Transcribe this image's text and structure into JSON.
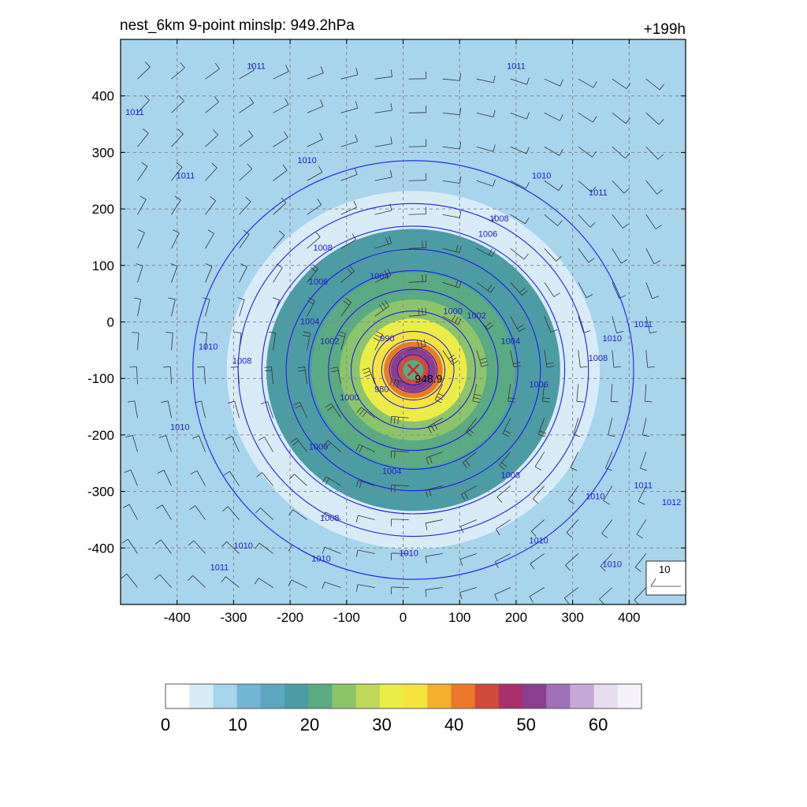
{
  "header": {
    "title_left": "nest_6km  9-point minslp: 949.2hPa",
    "title_right": "+199h"
  },
  "colors": {
    "contour": "#2020e0",
    "contour_label": "#2020c8",
    "center_marker": "#e02020",
    "grid": "#888888",
    "colormap": [
      "#ffffff",
      "#d8ecf8",
      "#a8d4ec",
      "#74b4d4",
      "#5ea6bf",
      "#4c9ca4",
      "#5aaa84",
      "#8cc46c",
      "#c0d85c",
      "#ecec48",
      "#f6e43c",
      "#f5b02e",
      "#ea7a2a",
      "#cf4a3a",
      "#a8306a",
      "#8a3e90",
      "#a070b8",
      "#c8a8d8",
      "#e8dcf0",
      "#f6f2fa"
    ]
  },
  "chart_data": {
    "type": "contour",
    "xlim": [
      -500,
      500
    ],
    "ylim": [
      -500,
      500
    ],
    "xticks": [
      -400,
      -300,
      -200,
      -100,
      0,
      100,
      200,
      300,
      400
    ],
    "yticks": [
      400,
      300,
      200,
      100,
      0,
      -100,
      -200,
      -300,
      -400
    ],
    "grid": true,
    "center": {
      "x": 18,
      "y": -85,
      "label": "948.9"
    },
    "filled_field": {
      "colorbar_min": 0,
      "colorbar_max": 66,
      "colorbar_ticks": [
        0,
        10,
        20,
        30,
        40,
        50,
        60
      ],
      "rings": [
        {
          "r": 480,
          "value": 9
        },
        {
          "r": 330,
          "value": 5
        },
        {
          "r": 260,
          "value": 17
        },
        {
          "r": 180,
          "value": 21
        },
        {
          "r": 130,
          "value": 26
        },
        {
          "r": 95,
          "value": 31
        },
        {
          "r": 70,
          "value": 36
        },
        {
          "r": 52,
          "value": 42
        },
        {
          "r": 40,
          "value": 50
        },
        {
          "r": 28,
          "value": 44
        },
        {
          "r": 18,
          "value": 20
        }
      ]
    },
    "contours": [
      {
        "r": 28,
        "label": ""
      },
      {
        "r": 42,
        "label": ""
      },
      {
        "r": 56,
        "label": "980"
      },
      {
        "r": 72,
        "label": "990"
      },
      {
        "r": 110,
        "label": "1000"
      },
      {
        "r": 150,
        "label": "1002"
      },
      {
        "r": 185,
        "label": "1004"
      },
      {
        "r": 225,
        "label": "1006"
      },
      {
        "r": 268,
        "label": "1008"
      },
      {
        "r": 310,
        "label": "1010"
      },
      {
        "r": 390,
        "label": "1011"
      }
    ],
    "contour_labels": [
      {
        "x": -260,
        "y": 452,
        "text": "1011"
      },
      {
        "x": -475,
        "y": 370,
        "text": "1011"
      },
      {
        "x": -385,
        "y": 258,
        "text": "1011"
      },
      {
        "x": -170,
        "y": 285,
        "text": "1010"
      },
      {
        "x": 200,
        "y": 452,
        "text": "1011"
      },
      {
        "x": 245,
        "y": 258,
        "text": "1010"
      },
      {
        "x": 345,
        "y": 228,
        "text": "1011"
      },
      {
        "x": 170,
        "y": 182,
        "text": "1008"
      },
      {
        "x": 150,
        "y": 155,
        "text": "1006"
      },
      {
        "x": -142,
        "y": 130,
        "text": "1008"
      },
      {
        "x": -42,
        "y": 80,
        "text": "1004"
      },
      {
        "x": -150,
        "y": 70,
        "text": "1006"
      },
      {
        "x": 88,
        "y": 18,
        "text": "1000"
      },
      {
        "x": 130,
        "y": 10,
        "text": "1002"
      },
      {
        "x": -165,
        "y": 0,
        "text": "1004"
      },
      {
        "x": -130,
        "y": -35,
        "text": "1002"
      },
      {
        "x": -28,
        "y": -30,
        "text": "990"
      },
      {
        "x": -38,
        "y": -120,
        "text": "980"
      },
      {
        "x": -95,
        "y": -135,
        "text": "1000"
      },
      {
        "x": 190,
        "y": -35,
        "text": "1004"
      },
      {
        "x": -345,
        "y": -45,
        "text": "1010"
      },
      {
        "x": -285,
        "y": -70,
        "text": "1008"
      },
      {
        "x": 345,
        "y": -65,
        "text": "1008"
      },
      {
        "x": 370,
        "y": -30,
        "text": "1010"
      },
      {
        "x": 425,
        "y": -5,
        "text": "1011"
      },
      {
        "x": 240,
        "y": -112,
        "text": "1006"
      },
      {
        "x": -395,
        "y": -187,
        "text": "1010"
      },
      {
        "x": -150,
        "y": -222,
        "text": "1006"
      },
      {
        "x": -20,
        "y": -265,
        "text": "1004"
      },
      {
        "x": 190,
        "y": -272,
        "text": "1008"
      },
      {
        "x": 340,
        "y": -310,
        "text": "1010"
      },
      {
        "x": 425,
        "y": -290,
        "text": "1011"
      },
      {
        "x": 475,
        "y": -320,
        "text": "1012"
      },
      {
        "x": -130,
        "y": -348,
        "text": "1008"
      },
      {
        "x": -283,
        "y": -397,
        "text": "1010"
      },
      {
        "x": 240,
        "y": -388,
        "text": "1010"
      },
      {
        "x": -325,
        "y": -435,
        "text": "1011"
      },
      {
        "x": -145,
        "y": -420,
        "text": "1010"
      },
      {
        "x": 10,
        "y": -410,
        "text": "1010"
      },
      {
        "x": 370,
        "y": -430,
        "text": "1010"
      }
    ],
    "wind_key": {
      "label": "10"
    }
  }
}
